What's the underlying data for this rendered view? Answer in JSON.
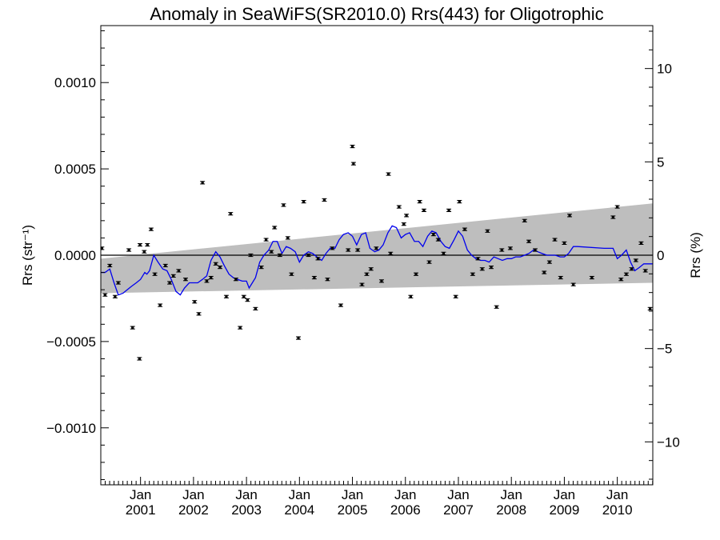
{
  "chart_data": {
    "type": "scatter",
    "title": "Anomaly in SeaWiFS(SR2010.0) Rrs(443) for Oligotrophic",
    "ylabel_left": "Rrs (str⁻¹)",
    "ylabel_right": "Rrs (%)",
    "ylim_left": [
      -0.00133,
      0.00133
    ],
    "ylim_right": [
      -12.3,
      12.3
    ],
    "xlim": [
      2000.25,
      2010.67
    ],
    "x_tick_prefix": "Jan",
    "x_tick_years": [
      "2001",
      "2002",
      "2003",
      "2004",
      "2005",
      "2006",
      "2007",
      "2008",
      "2009",
      "2010"
    ],
    "y_ticks_left": [
      {
        "value": 0.001,
        "label": "0.0010"
      },
      {
        "value": 0.0005,
        "label": "0.0005"
      },
      {
        "value": 0.0,
        "label": "0.0000"
      },
      {
        "value": -0.0005,
        "label": "−0.0005"
      },
      {
        "value": -0.001,
        "label": "−0.0010"
      }
    ],
    "y_ticks_right": [
      {
        "value": 10,
        "label": "10"
      },
      {
        "value": 5,
        "label": "5"
      },
      {
        "value": 0,
        "label": "0"
      },
      {
        "value": -5,
        "label": "−5"
      },
      {
        "value": -10,
        "label": "−10"
      }
    ],
    "zero_line": 0.0,
    "band": {
      "color": "#bebebe",
      "upper": [
        [
          2000.25,
          -2e-05
        ],
        [
          2010.67,
          0.0003
        ]
      ],
      "lower": [
        [
          2000.25,
          -0.00022
        ],
        [
          2010.67,
          -0.00016
        ]
      ]
    },
    "points": [
      [
        2000.27,
        4e-05
      ],
      [
        2000.33,
        -0.00023
      ],
      [
        2000.42,
        -6e-05
      ],
      [
        2000.52,
        -0.00024
      ],
      [
        2000.58,
        -0.00016
      ],
      [
        2000.78,
        3e-05
      ],
      [
        2000.85,
        -0.00042
      ],
      [
        2000.98,
        -0.0006
      ],
      [
        2000.99,
        6e-05
      ],
      [
        2001.07,
        2e-05
      ],
      [
        2001.13,
        6e-05
      ],
      [
        2001.2,
        0.00015
      ],
      [
        2001.27,
        -0.00011
      ],
      [
        2001.37,
        -0.00029
      ],
      [
        2001.47,
        -6e-05
      ],
      [
        2001.55,
        -0.00016
      ],
      [
        2001.62,
        -0.00012
      ],
      [
        2001.72,
        -9e-05
      ],
      [
        2001.85,
        -0.00014
      ],
      [
        2002.02,
        -0.00027
      ],
      [
        2002.1,
        -0.00034
      ],
      [
        2002.17,
        0.00042
      ],
      [
        2002.25,
        -0.00015
      ],
      [
        2002.33,
        -0.00013
      ],
      [
        2002.42,
        -5e-05
      ],
      [
        2002.5,
        -7e-05
      ],
      [
        2002.62,
        -0.00024
      ],
      [
        2002.7,
        0.00024
      ],
      [
        2002.8,
        -0.00014
      ],
      [
        2002.88,
        -0.00042
      ],
      [
        2002.95,
        -0.00024
      ],
      [
        2003.02,
        -0.00026
      ],
      [
        2003.08,
        0.0
      ],
      [
        2003.17,
        -0.00031
      ],
      [
        2003.28,
        -7e-05
      ],
      [
        2003.37,
        9e-05
      ],
      [
        2003.47,
        2e-05
      ],
      [
        2003.53,
        0.00016
      ],
      [
        2003.63,
        0.0
      ],
      [
        2003.7,
        0.00029
      ],
      [
        2003.78,
        0.0001
      ],
      [
        2003.85,
        -0.00011
      ],
      [
        2003.98,
        -0.00048
      ],
      [
        2004.08,
        0.00031
      ],
      [
        2004.17,
        0.0
      ],
      [
        2004.28,
        -0.00013
      ],
      [
        2004.35,
        -2e-05
      ],
      [
        2004.47,
        0.00032
      ],
      [
        2004.53,
        -0.00014
      ],
      [
        2004.62,
        4e-05
      ],
      [
        2004.78,
        -0.00029
      ],
      [
        2004.92,
        3e-05
      ],
      [
        2005.0,
        0.00063
      ],
      [
        2005.02,
        0.00053
      ],
      [
        2005.1,
        3e-05
      ],
      [
        2005.18,
        -0.00017
      ],
      [
        2005.27,
        -0.00011
      ],
      [
        2005.35,
        -8e-05
      ],
      [
        2005.45,
        4e-05
      ],
      [
        2005.55,
        -0.00015
      ],
      [
        2005.68,
        0.00047
      ],
      [
        2005.72,
        1e-05
      ],
      [
        2005.88,
        0.00028
      ],
      [
        2005.97,
        0.00018
      ],
      [
        2006.02,
        0.00023
      ],
      [
        2006.1,
        -0.00024
      ],
      [
        2006.2,
        -0.00011
      ],
      [
        2006.27,
        0.00031
      ],
      [
        2006.35,
        0.00026
      ],
      [
        2006.45,
        -4e-05
      ],
      [
        2006.53,
        0.00012
      ],
      [
        2006.62,
        9e-05
      ],
      [
        2006.72,
        1e-05
      ],
      [
        2006.82,
        0.00026
      ],
      [
        2006.95,
        -0.00024
      ],
      [
        2007.02,
        0.00031
      ],
      [
        2007.12,
        0.00015
      ],
      [
        2007.27,
        -0.00011
      ],
      [
        2007.37,
        -2e-05
      ],
      [
        2007.45,
        -8e-05
      ],
      [
        2007.55,
        0.00014
      ],
      [
        2007.62,
        -7e-05
      ],
      [
        2007.72,
        -0.0003
      ],
      [
        2007.82,
        3e-05
      ],
      [
        2007.98,
        4e-05
      ],
      [
        2008.25,
        0.0002
      ],
      [
        2008.33,
        8e-05
      ],
      [
        2008.45,
        3e-05
      ],
      [
        2008.62,
        -0.0001
      ],
      [
        2008.72,
        -4e-05
      ],
      [
        2008.82,
        9e-05
      ],
      [
        2008.93,
        -0.00013
      ],
      [
        2009.0,
        7e-05
      ],
      [
        2009.1,
        0.00023
      ],
      [
        2009.17,
        -0.00017
      ],
      [
        2009.52,
        -0.00013
      ],
      [
        2009.92,
        0.00022
      ],
      [
        2010.0,
        0.00028
      ],
      [
        2010.07,
        -0.00014
      ],
      [
        2010.17,
        -0.00011
      ],
      [
        2010.27,
        -8e-05
      ],
      [
        2010.35,
        -3e-05
      ],
      [
        2010.45,
        7e-05
      ],
      [
        2010.53,
        -9e-05
      ],
      [
        2010.62,
        -0.00031
      ]
    ],
    "line_color": "#0000ee",
    "line": [
      [
        2000.25,
        -0.0001
      ],
      [
        2000.33,
        -0.0001
      ],
      [
        2000.42,
        -8e-05
      ],
      [
        2000.5,
        -0.00016
      ],
      [
        2000.58,
        -0.00023
      ],
      [
        2000.67,
        -0.00022
      ],
      [
        2000.75,
        -0.0002
      ],
      [
        2000.83,
        -0.00018
      ],
      [
        2000.92,
        -0.00016
      ],
      [
        2001.0,
        -0.00014
      ],
      [
        2001.08,
        -0.0001
      ],
      [
        2001.12,
        -0.00011
      ],
      [
        2001.17,
        -9e-05
      ],
      [
        2001.25,
        0.0
      ],
      [
        2001.33,
        -4e-05
      ],
      [
        2001.42,
        -8e-05
      ],
      [
        2001.5,
        -9e-05
      ],
      [
        2001.58,
        -0.00014
      ],
      [
        2001.67,
        -0.00021
      ],
      [
        2001.75,
        -0.00023
      ],
      [
        2001.83,
        -0.00019
      ],
      [
        2001.92,
        -0.00016
      ],
      [
        2002.0,
        -0.00016
      ],
      [
        2002.08,
        -0.00016
      ],
      [
        2002.17,
        -0.00014
      ],
      [
        2002.25,
        -0.00012
      ],
      [
        2002.33,
        -3e-05
      ],
      [
        2002.42,
        2e-05
      ],
      [
        2002.5,
        -1e-05
      ],
      [
        2002.58,
        -6e-05
      ],
      [
        2002.67,
        -0.00011
      ],
      [
        2002.75,
        -0.00013
      ],
      [
        2002.83,
        -0.00014
      ],
      [
        2002.92,
        -0.00015
      ],
      [
        2003.0,
        -0.00015
      ],
      [
        2003.05,
        -0.00019
      ],
      [
        2003.17,
        -0.00013
      ],
      [
        2003.25,
        -4e-05
      ],
      [
        2003.33,
        0.0
      ],
      [
        2003.42,
        3e-05
      ],
      [
        2003.5,
        8e-05
      ],
      [
        2003.58,
        8e-05
      ],
      [
        2003.67,
        1e-05
      ],
      [
        2003.75,
        5e-05
      ],
      [
        2003.83,
        4e-05
      ],
      [
        2003.92,
        2e-05
      ],
      [
        2004.0,
        -4e-05
      ],
      [
        2004.08,
        0.0
      ],
      [
        2004.17,
        2e-05
      ],
      [
        2004.25,
        1e-05
      ],
      [
        2004.33,
        -1e-05
      ],
      [
        2004.42,
        -3e-05
      ],
      [
        2004.5,
        1e-05
      ],
      [
        2004.58,
        4e-05
      ],
      [
        2004.67,
        4e-05
      ],
      [
        2004.75,
        9e-05
      ],
      [
        2004.83,
        0.00012
      ],
      [
        2004.92,
        0.00013
      ],
      [
        2005.0,
        0.00011
      ],
      [
        2005.08,
        6e-05
      ],
      [
        2005.17,
        0.00012
      ],
      [
        2005.25,
        0.00013
      ],
      [
        2005.33,
        4e-05
      ],
      [
        2005.42,
        2e-05
      ],
      [
        2005.5,
        3e-05
      ],
      [
        2005.58,
        6e-05
      ],
      [
        2005.67,
        0.00013
      ],
      [
        2005.75,
        0.00017
      ],
      [
        2005.83,
        0.00016
      ],
      [
        2005.92,
        0.0001
      ],
      [
        2006.0,
        0.00012
      ],
      [
        2006.08,
        0.00013
      ],
      [
        2006.17,
        8e-05
      ],
      [
        2006.25,
        8e-05
      ],
      [
        2006.33,
        5e-05
      ],
      [
        2006.42,
        0.00011
      ],
      [
        2006.5,
        0.00014
      ],
      [
        2006.58,
        0.00013
      ],
      [
        2006.67,
        8e-05
      ],
      [
        2006.75,
        5e-05
      ],
      [
        2006.83,
        4e-05
      ],
      [
        2006.92,
        9e-05
      ],
      [
        2007.0,
        0.00014
      ],
      [
        2007.08,
        0.00011
      ],
      [
        2007.17,
        3e-05
      ],
      [
        2007.25,
        0.0
      ],
      [
        2007.33,
        -2e-05
      ],
      [
        2007.42,
        -3e-05
      ],
      [
        2007.5,
        -3e-05
      ],
      [
        2007.58,
        -4e-05
      ],
      [
        2007.67,
        -1e-05
      ],
      [
        2007.75,
        -2e-05
      ],
      [
        2007.83,
        -3e-05
      ],
      [
        2007.92,
        -2e-05
      ],
      [
        2008.0,
        -2e-05
      ],
      [
        2008.08,
        -1e-05
      ],
      [
        2008.17,
        -1e-05
      ],
      [
        2008.25,
        0.0
      ],
      [
        2008.33,
        1e-05
      ],
      [
        2008.42,
        3e-05
      ],
      [
        2008.5,
        2e-05
      ],
      [
        2008.58,
        1e-05
      ],
      [
        2008.67,
        0.0
      ],
      [
        2008.75,
        0.0
      ],
      [
        2008.83,
        0.0
      ],
      [
        2008.92,
        -1e-05
      ],
      [
        2009.0,
        -1e-05
      ],
      [
        2009.08,
        1e-05
      ],
      [
        2009.17,
        5e-05
      ],
      [
        2009.25,
        5e-05
      ],
      [
        2009.75,
        4e-05
      ],
      [
        2009.92,
        4e-05
      ],
      [
        2010.0,
        -2e-05
      ],
      [
        2010.08,
        0.0
      ],
      [
        2010.17,
        3e-05
      ],
      [
        2010.25,
        -4e-05
      ],
      [
        2010.33,
        -9e-05
      ],
      [
        2010.42,
        -7e-05
      ],
      [
        2010.5,
        -5e-05
      ],
      [
        2010.58,
        -5e-05
      ],
      [
        2010.67,
        -5e-05
      ]
    ]
  }
}
